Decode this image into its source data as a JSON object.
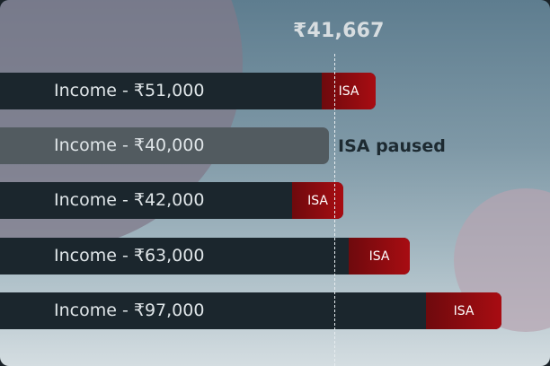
{
  "threshold": {
    "label": "₹41,667"
  },
  "rows": [
    {
      "label": "Income - ₹51,000",
      "tag": "ISA"
    },
    {
      "label": "Income - ₹40,000",
      "status": "ISA paused"
    },
    {
      "label": "Income - ₹42,000",
      "tag": "ISA"
    },
    {
      "label": "Income - ₹63,000",
      "tag": "ISA"
    },
    {
      "label": "Income - ₹97,000",
      "tag": "ISA"
    }
  ],
  "colors": {
    "bar": "#1b262d",
    "paused_bar": "#525b60",
    "tag": "#a80c12",
    "threshold_line": "#e6ecef"
  }
}
